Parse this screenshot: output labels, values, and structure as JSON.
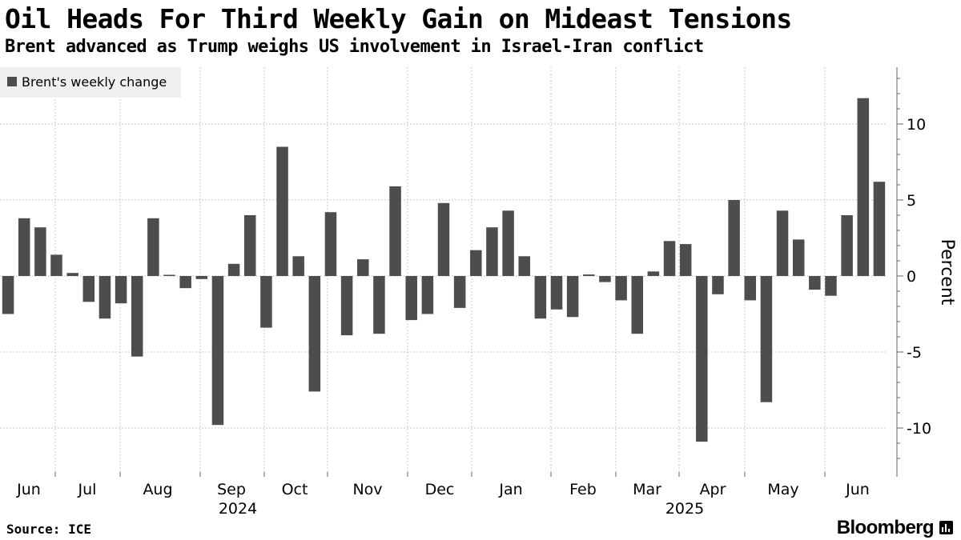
{
  "header": {
    "title": "Oil Heads For Third Weekly Gain on Mideast Tensions",
    "subtitle": "Brent advanced as Trump weighs US involvement in Israel-Iran conflict"
  },
  "footer": {
    "source": "Source: ICE",
    "brand": "Bloomberg"
  },
  "colors": {
    "bar": "#4d4d4d",
    "grid": "#c8c8c8",
    "axis": "#666666",
    "legend_bg": "#f0f0f0"
  },
  "chart_data": {
    "type": "bar",
    "legend": [
      "Brent's weekly change"
    ],
    "legend_position": "top-left",
    "ylabel": "Percent",
    "ylim": [
      -12.4,
      13.8
    ],
    "yticks": [
      10,
      5,
      0,
      -5,
      -10
    ],
    "grid": true,
    "x_month_labels": [
      "Jun",
      "Jul",
      "Aug",
      "Sep",
      "Oct",
      "Nov",
      "Dec",
      "Jan",
      "Feb",
      "Mar",
      "Apr",
      "May",
      "Jun"
    ],
    "x_year_labels": [
      "2024",
      "2025"
    ],
    "series": [
      {
        "name": "Brent's weekly change",
        "values": [
          -2.5,
          3.8,
          3.2,
          1.4,
          0.2,
          -1.7,
          -2.8,
          -1.8,
          -5.3,
          3.8,
          0.05,
          -0.8,
          -0.2,
          -9.8,
          0.8,
          4.0,
          -3.4,
          8.5,
          1.3,
          -7.6,
          4.2,
          -3.9,
          1.1,
          -3.8,
          5.9,
          -2.9,
          -2.5,
          4.8,
          -2.1,
          1.7,
          3.2,
          4.3,
          1.3,
          -2.8,
          -2.2,
          -2.7,
          0.1,
          -0.4,
          -1.6,
          -3.8,
          0.3,
          2.3,
          2.1,
          -10.9,
          -1.2,
          5.0,
          -1.6,
          -8.3,
          4.3,
          2.4,
          -0.9,
          -1.3,
          4.0,
          11.7,
          6.2
        ]
      }
    ]
  }
}
